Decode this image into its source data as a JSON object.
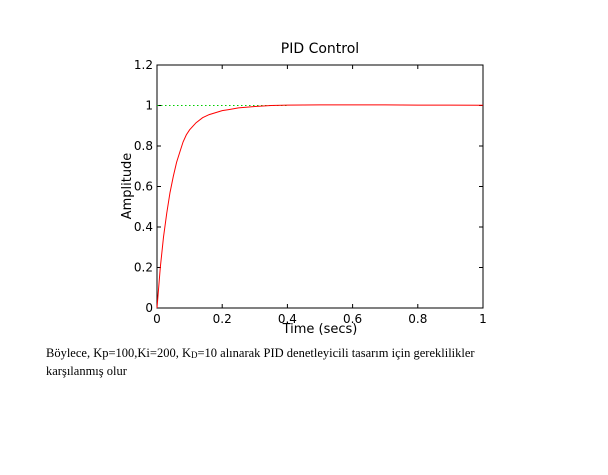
{
  "chart_data": {
    "type": "line",
    "title": "PID Control",
    "xlabel": "Time (secs)",
    "ylabel": "Amplitude",
    "xlim": [
      0,
      1
    ],
    "ylim": [
      0,
      1.2
    ],
    "xticks": [
      "0",
      "0.2",
      "0.4",
      "0.6",
      "0.8",
      "1"
    ],
    "xtick_values": [
      0,
      0.2,
      0.4,
      0.6,
      0.8,
      1
    ],
    "yticks": [
      "0",
      "0.2",
      "0.4",
      "0.6",
      "0.8",
      "1",
      "1.2"
    ],
    "ytick_values": [
      0,
      0.2,
      0.4,
      0.6,
      0.8,
      1,
      1.2
    ],
    "grid": false,
    "colors": {
      "response": "#ff0000",
      "reference": "#00cc00"
    },
    "reference_line": {
      "y": 1,
      "style": "dotted",
      "x_range": [
        0,
        0.4
      ]
    },
    "series": [
      {
        "x": [
          0,
          0.01,
          0.02,
          0.03,
          0.04,
          0.05,
          0.06,
          0.07,
          0.08,
          0.09,
          0.1,
          0.12,
          0.14,
          0.16,
          0.18,
          0.2,
          0.22,
          0.25,
          0.3,
          0.35,
          0.4,
          0.5,
          0.6,
          0.7,
          0.8,
          0.9,
          1.0
        ],
        "values": [
          0,
          0.2,
          0.35,
          0.47,
          0.57,
          0.65,
          0.72,
          0.77,
          0.82,
          0.855,
          0.88,
          0.915,
          0.94,
          0.955,
          0.965,
          0.975,
          0.98,
          0.988,
          0.995,
          1.0,
          1.002,
          1.003,
          1.003,
          1.003,
          1.002,
          1.002,
          1.001
        ]
      }
    ]
  },
  "caption": {
    "line1_pre": "Böylece, Kp=100,Ki=200, K",
    "line1_sub": "D",
    "line1_post": "=10 alınarak PID denetleyicili tasarım için gereklilikler",
    "line2": "karşılanmış olur"
  }
}
